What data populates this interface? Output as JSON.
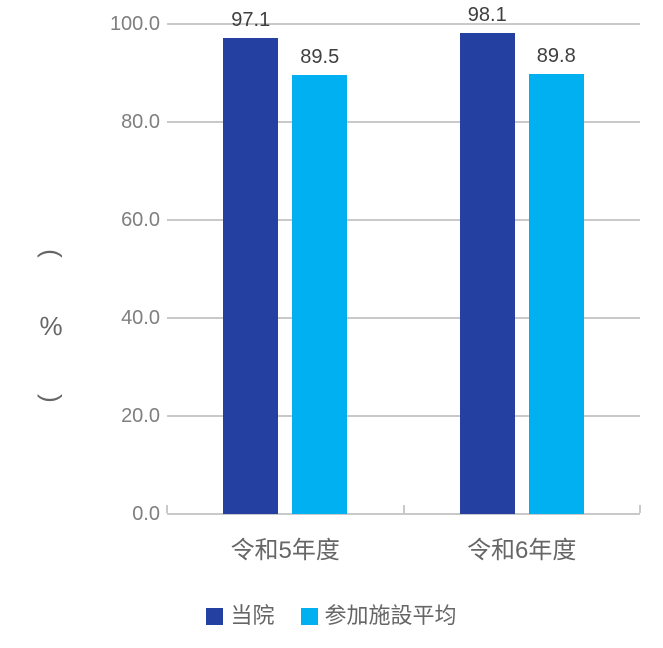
{
  "chart_data": {
    "type": "bar",
    "title": "",
    "categories": [
      "令和5年度",
      "令和6年度"
    ],
    "series": [
      {
        "name": "当院",
        "color": "#2440A0",
        "values": [
          97.1,
          98.1
        ]
      },
      {
        "name": "参加施設平均",
        "color": "#00B0F0",
        "values": [
          89.5,
          89.8
        ]
      }
    ],
    "xlabel": "",
    "ylabel": "（％）",
    "ylim": [
      0,
      100
    ],
    "ytick_step": 20,
    "ytick_decimals": 1,
    "ytick_labels": [
      "0.0",
      "20.0",
      "40.0",
      "60.0",
      "80.0",
      "100.0"
    ],
    "data_label_decimals": 1,
    "grid": true,
    "legend_position": "bottom"
  },
  "colors": {
    "background": "#FFFFFF",
    "gridline": "#C9C9C9",
    "axis_line": "#C9C9C9",
    "tick_label": "#7F7F7F",
    "data_label": "#3F3F3F",
    "category_label": "#666666",
    "legend_label": "#666666",
    "axis_title": "#666666"
  }
}
